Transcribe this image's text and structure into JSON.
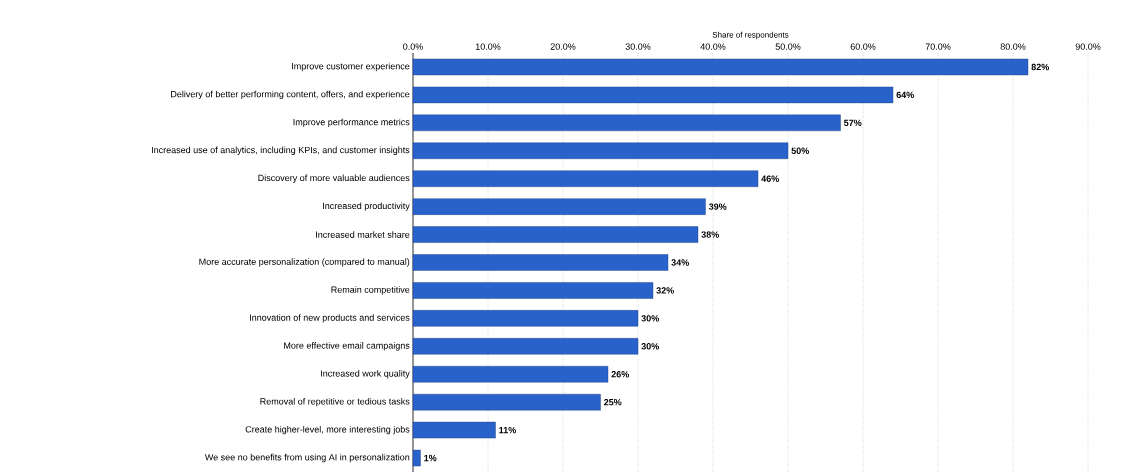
{
  "chart_data": {
    "type": "bar",
    "orientation": "horizontal",
    "xlabel": "Share of respondents",
    "categories": [
      "Improve customer experience",
      "Delivery of better performing content, offers, and experience",
      "Improve performance metrics",
      "Increased use of analytics, including KPIs, and customer insights",
      "Discovery of more valuable audiences",
      "Increased productivity",
      "Increased market share",
      "More accurate personalization (compared to manual)",
      "Remain competitive",
      "Innovation of new products and services",
      "More effective email campaigns",
      "Increased work quality",
      "Removal of repetitive or tedious tasks",
      "Create higher-level, more interesting jobs",
      "We see no benefits from using AI in personalization"
    ],
    "values": [
      82,
      64,
      57,
      50,
      46,
      39,
      38,
      34,
      32,
      30,
      30,
      26,
      25,
      11,
      1
    ],
    "value_labels": [
      "82%",
      "64%",
      "57%",
      "50%",
      "46%",
      "39%",
      "38%",
      "34%",
      "32%",
      "30%",
      "30%",
      "26%",
      "25%",
      "11%",
      "1%"
    ],
    "color": "#2a62cc",
    "xlim": [
      0,
      90
    ],
    "xticks": [
      {
        "value": 0,
        "label": "0.0%"
      },
      {
        "value": 10,
        "label": "10.0%"
      },
      {
        "value": 20,
        "label": "20.0%"
      },
      {
        "value": 30,
        "label": "30.0%"
      },
      {
        "value": 40,
        "label": "40.0%"
      },
      {
        "value": 50,
        "label": "50.0%"
      },
      {
        "value": 60,
        "label": "60.0%"
      },
      {
        "value": 70,
        "label": "70.0%"
      },
      {
        "value": 80,
        "label": "80.0%"
      },
      {
        "value": 90,
        "label": "90.0%"
      }
    ],
    "grid": "x"
  }
}
